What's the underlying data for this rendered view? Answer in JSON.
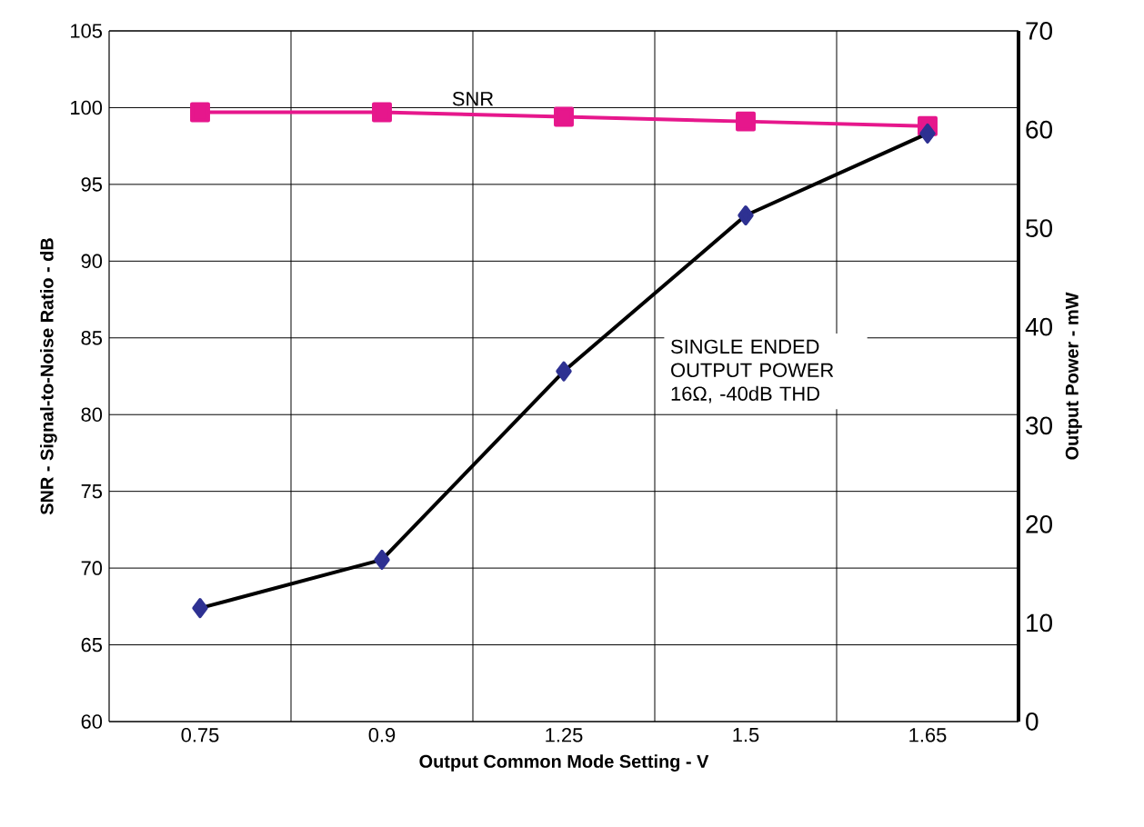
{
  "chart_data": {
    "type": "line",
    "xlabel": "Output Common Mode Setting - V",
    "ylabel": "SNR - Signal-to-Noise Ratio - dB",
    "y2label": "Output Power  - mW",
    "categories": [
      "0.75",
      "0.9",
      "1.25",
      "1.5",
      "1.65"
    ],
    "series": [
      {
        "name": "SNR",
        "color": "#e6178c",
        "marker": "square",
        "values": [
          99.7,
          99.7,
          99.4,
          99.1,
          98.8
        ]
      },
      {
        "name": "SINGLE ENDED OUTPUT POWER 16Ω, -40dB THD",
        "color": "#2e3192",
        "marker": "diamond",
        "axis": "y2",
        "values": [
          11.5,
          16.4,
          35.5,
          51.3,
          59.6
        ]
      }
    ],
    "ylim": [
      60,
      105
    ],
    "yticks": [
      60,
      65,
      70,
      75,
      80,
      85,
      90,
      95,
      100,
      105
    ],
    "y2lim": [
      0,
      70
    ],
    "y2ticks": [
      0,
      10,
      20,
      30,
      40,
      50,
      60,
      70
    ],
    "grid": true
  }
}
